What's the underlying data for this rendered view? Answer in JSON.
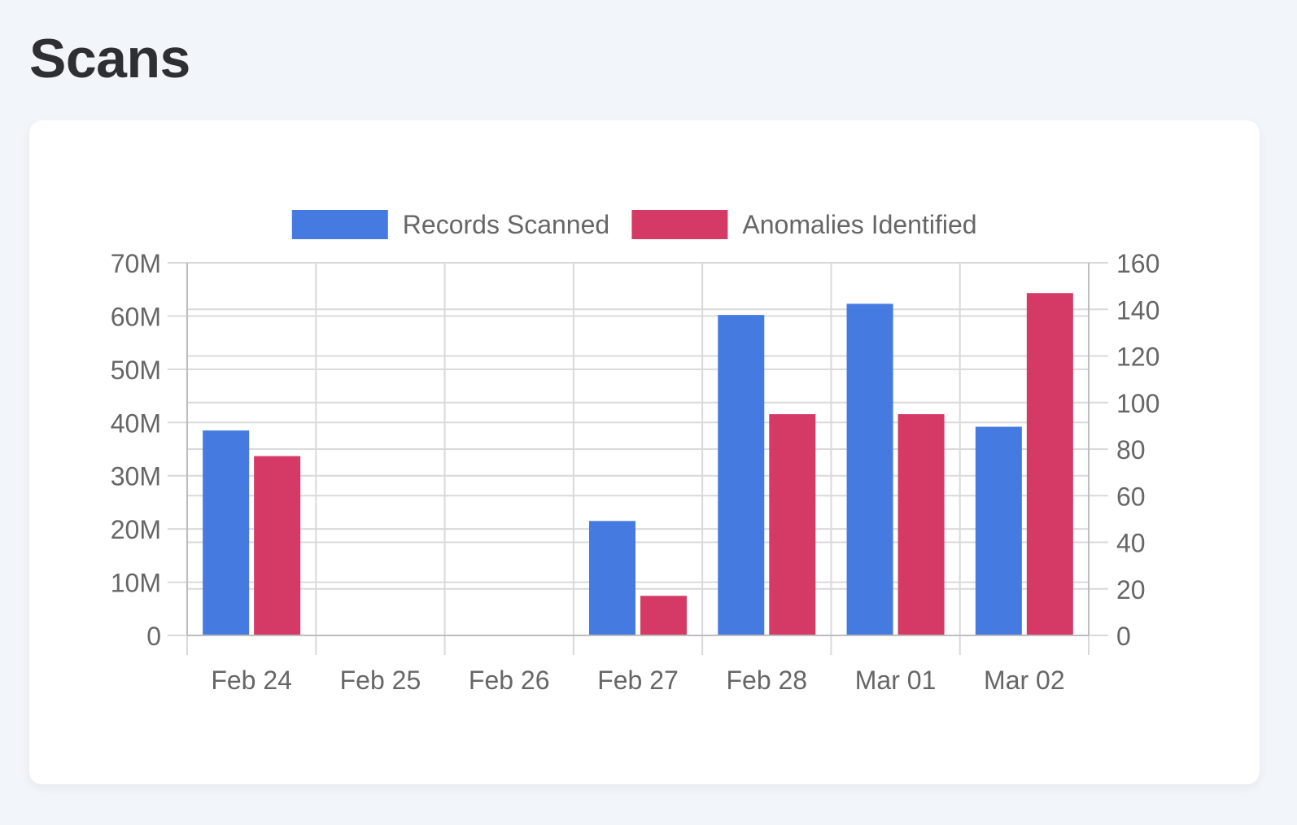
{
  "page": {
    "title": "Scans"
  },
  "colors": {
    "records": "#457be0",
    "anomalies": "#d53a66",
    "grid": "#d9d9d9",
    "axis": "#bdbdbd",
    "tick_text": "#666666"
  },
  "chart_data": {
    "type": "bar",
    "categories": [
      "Feb 24",
      "Feb 25",
      "Feb 26",
      "Feb 27",
      "Feb 28",
      "Mar 01",
      "Mar 02"
    ],
    "series": [
      {
        "name": "Records Scanned",
        "axis": "left",
        "color": "#457be0",
        "values": [
          38500000,
          0,
          0,
          21500000,
          60200000,
          62300000,
          39200000
        ]
      },
      {
        "name": "Anomalies Identified",
        "axis": "right",
        "color": "#d53a66",
        "values": [
          77,
          0,
          0,
          17,
          95,
          95,
          147
        ]
      }
    ],
    "left_axis": {
      "ylim": [
        0,
        70000000
      ],
      "tick_labels": [
        "0",
        "10M",
        "20M",
        "30M",
        "40M",
        "50M",
        "60M",
        "70M"
      ]
    },
    "right_axis": {
      "ylim": [
        0,
        160
      ],
      "tick_labels": [
        "0",
        "20",
        "40",
        "60",
        "80",
        "100",
        "120",
        "140",
        "160"
      ]
    },
    "grid": true,
    "legend_position": "top"
  }
}
